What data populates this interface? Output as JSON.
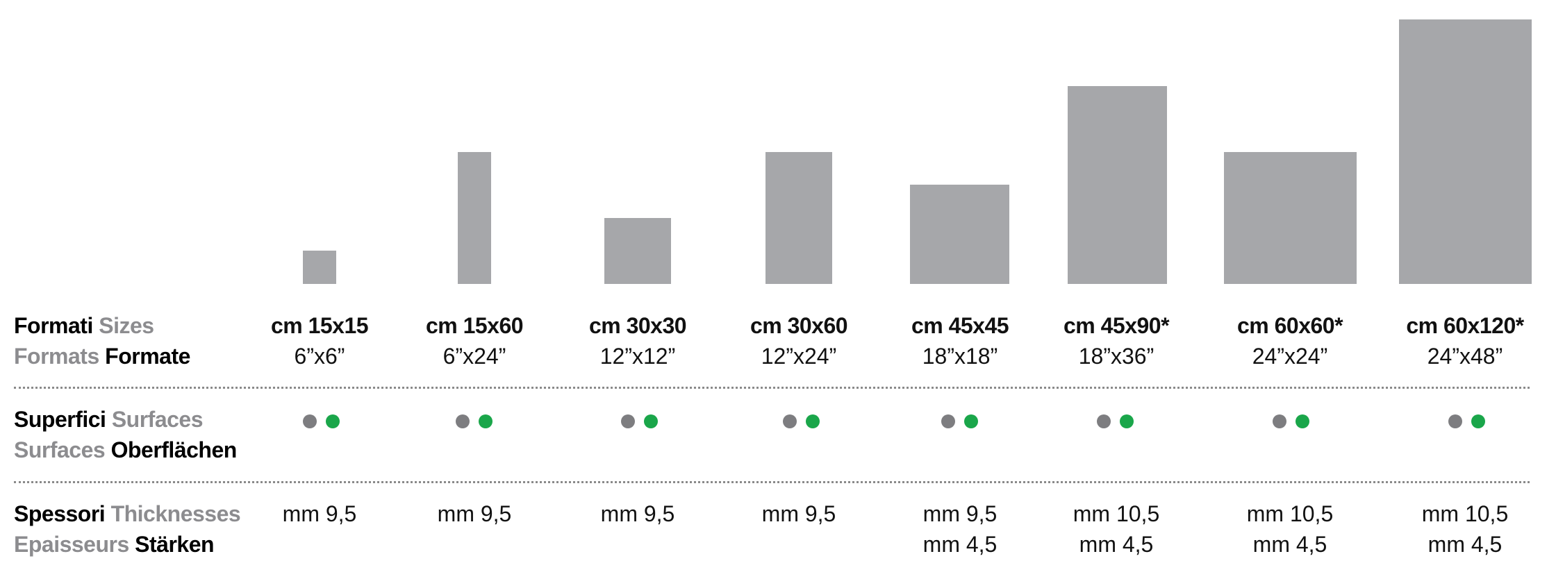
{
  "labels": {
    "sizes": {
      "it": "Formati",
      "en": "Sizes",
      "fr": "Formats",
      "de": "Formate"
    },
    "surfaces": {
      "it": "Superfici",
      "en": "Surfaces",
      "fr": "Surfaces",
      "de": "Oberflächen"
    },
    "thick": {
      "it": "Spessori",
      "en": "Thicknesses",
      "fr": "Epaisseurs",
      "de": "Stärken"
    }
  },
  "formats": [
    {
      "cm": "cm 15x15",
      "inch": "6”x6”",
      "thick1": "mm 9,5",
      "thick2": ""
    },
    {
      "cm": "cm 15x60",
      "inch": "6”x24”",
      "thick1": "mm 9,5",
      "thick2": ""
    },
    {
      "cm": "cm 30x30",
      "inch": "12”x12”",
      "thick1": "mm 9,5",
      "thick2": ""
    },
    {
      "cm": "cm 30x60",
      "inch": "12”x24”",
      "thick1": "mm 9,5",
      "thick2": ""
    },
    {
      "cm": "cm 45x45",
      "inch": "18”x18”",
      "thick1": "mm 9,5",
      "thick2": "mm 4,5"
    },
    {
      "cm": "cm 45x90*",
      "inch": "18”x36”",
      "thick1": "mm 10,5",
      "thick2": "mm 4,5"
    },
    {
      "cm": "cm 60x60*",
      "inch": "24”x24”",
      "thick1": "mm 10,5",
      "thick2": "mm 4,5"
    },
    {
      "cm": "cm 60x120*",
      "inch": "24”x48”",
      "thick1": "mm 10,5",
      "thick2": "mm 4,5"
    }
  ],
  "colors": {
    "tile": "#a6a7aa",
    "surface_grey": "#7d7d80",
    "surface_green": "#1aa64a",
    "label_grey": "#8c8c8f"
  }
}
